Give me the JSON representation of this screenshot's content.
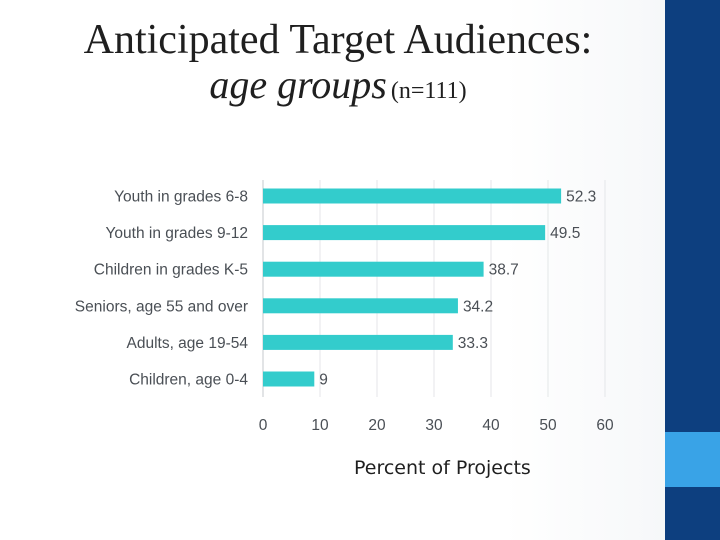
{
  "title": {
    "line1": "Anticipated Target Audiences:",
    "line2_italic": "age groups",
    "line2_n": "(n=111)"
  },
  "theme": {
    "bar_color": "#33cccc",
    "sidebar_color": "#0d3f7f",
    "accent_color": "#39a3e7"
  },
  "chart_data": {
    "type": "bar",
    "orientation": "horizontal",
    "title": "Anticipated Target Audiences: age groups (n=111)",
    "categories": [
      "Youth in grades 6-8",
      "Youth in grades 9-12",
      "Children in grades K-5",
      "Seniors, age 55 and over",
      "Adults, age 19-54",
      "Children, age 0-4"
    ],
    "values": [
      52.3,
      49.5,
      38.7,
      34.2,
      33.3,
      9
    ],
    "value_labels": [
      "52.3",
      "49.5",
      "38.7",
      "34.2",
      "33.3",
      "9"
    ],
    "xlim": [
      0,
      60
    ],
    "ticks": [
      0,
      10,
      20,
      30,
      40,
      50,
      60
    ],
    "xlabel": "Percent of Projects",
    "ylabel": "",
    "grid": true,
    "legend": "none"
  }
}
